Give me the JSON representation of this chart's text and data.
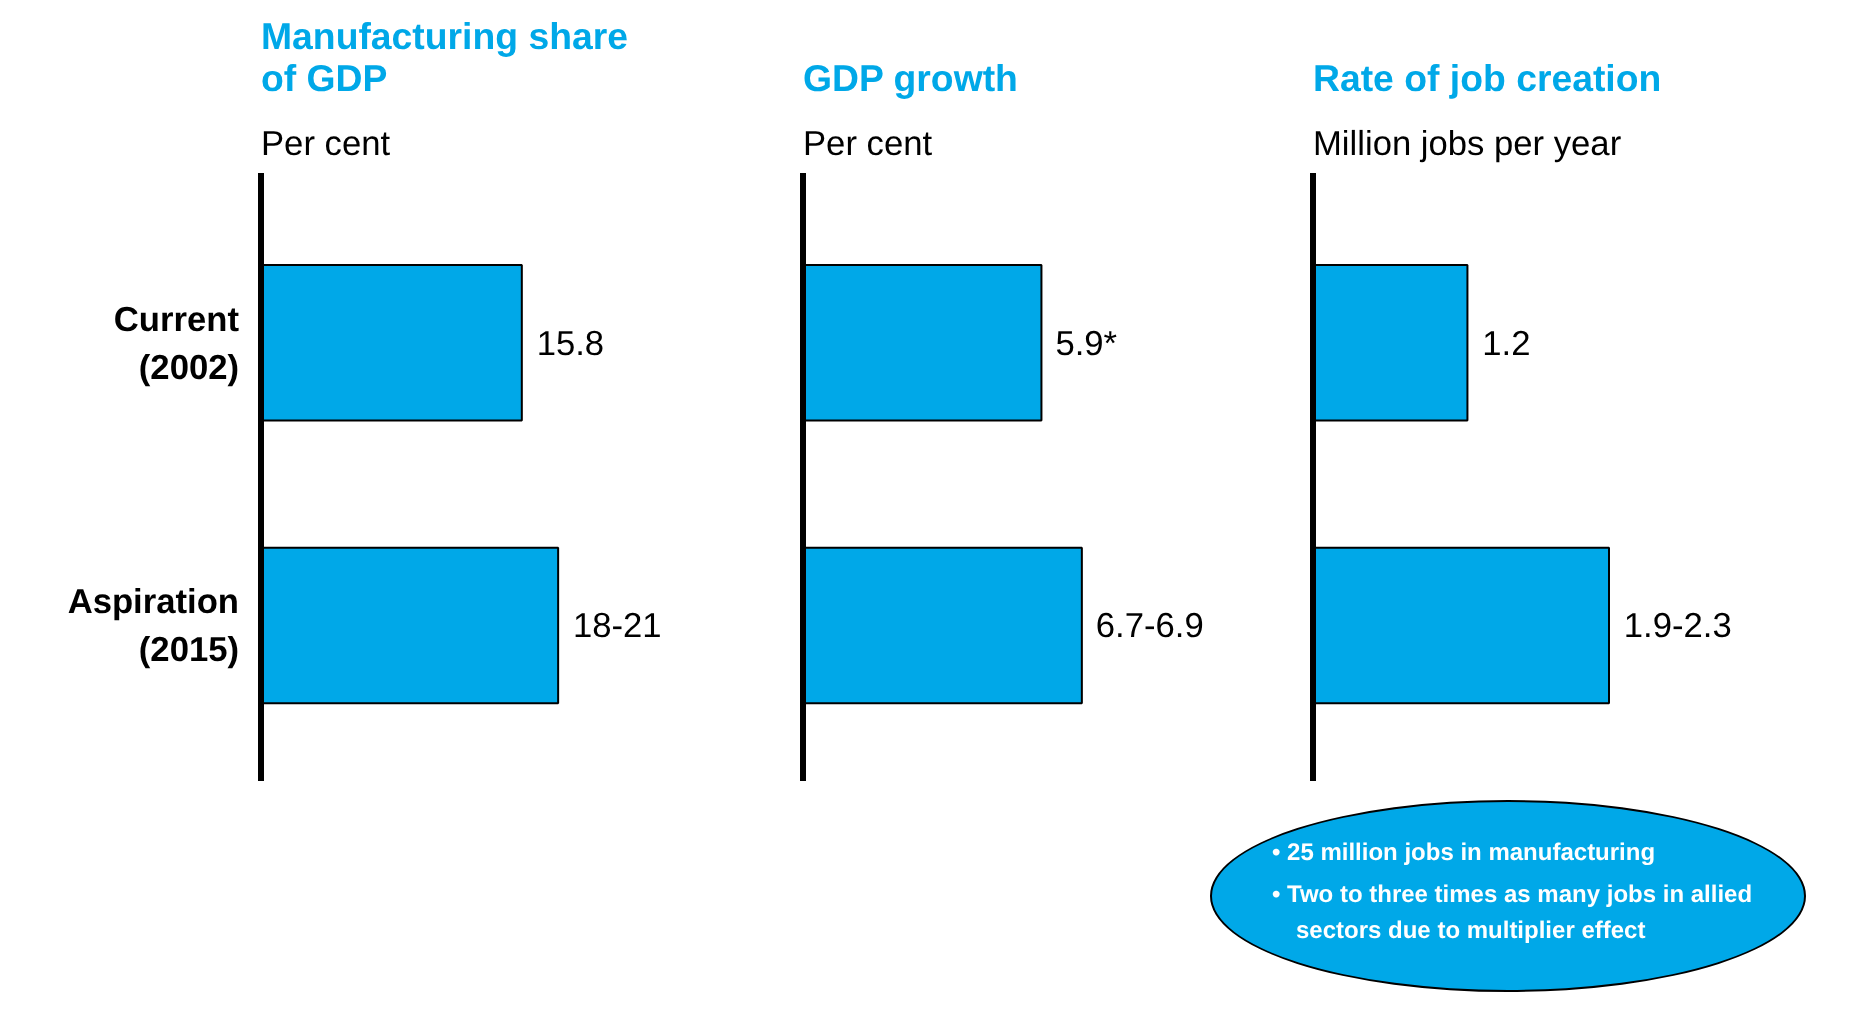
{
  "chart_data": [
    {
      "type": "bar",
      "orientation": "horizontal",
      "title": "Manufacturing share of GDP",
      "subtitle": "Per cent",
      "categories": [
        "Current (2002)",
        "Aspiration (2015)"
      ],
      "values": [
        15.8,
        18
      ],
      "value_labels": [
        "15.8",
        "18-21"
      ],
      "color": "#00a8e8",
      "grid": false
    },
    {
      "type": "bar",
      "orientation": "horizontal",
      "title": "GDP growth",
      "subtitle": "Per cent",
      "categories": [
        null,
        null
      ],
      "values": [
        5.9,
        6.9
      ],
      "value_labels": [
        "5.9*",
        "6.7-6.9"
      ],
      "color": "#00a8e8",
      "grid": false
    },
    {
      "type": "bar",
      "orientation": "horizontal",
      "title": "Rate of job creation",
      "subtitle": "Million jobs per year",
      "categories": [
        null,
        null
      ],
      "values": [
        1.2,
        2.3
      ],
      "value_labels": [
        "1.2",
        "1.9-2.3"
      ],
      "color": "#00a8e8",
      "grid": false,
      "annotations": [
        "• 25 million jobs in manufacturing",
        "• Two to three times as many jobs in allied sectors due to multiplier effect"
      ]
    }
  ]
}
